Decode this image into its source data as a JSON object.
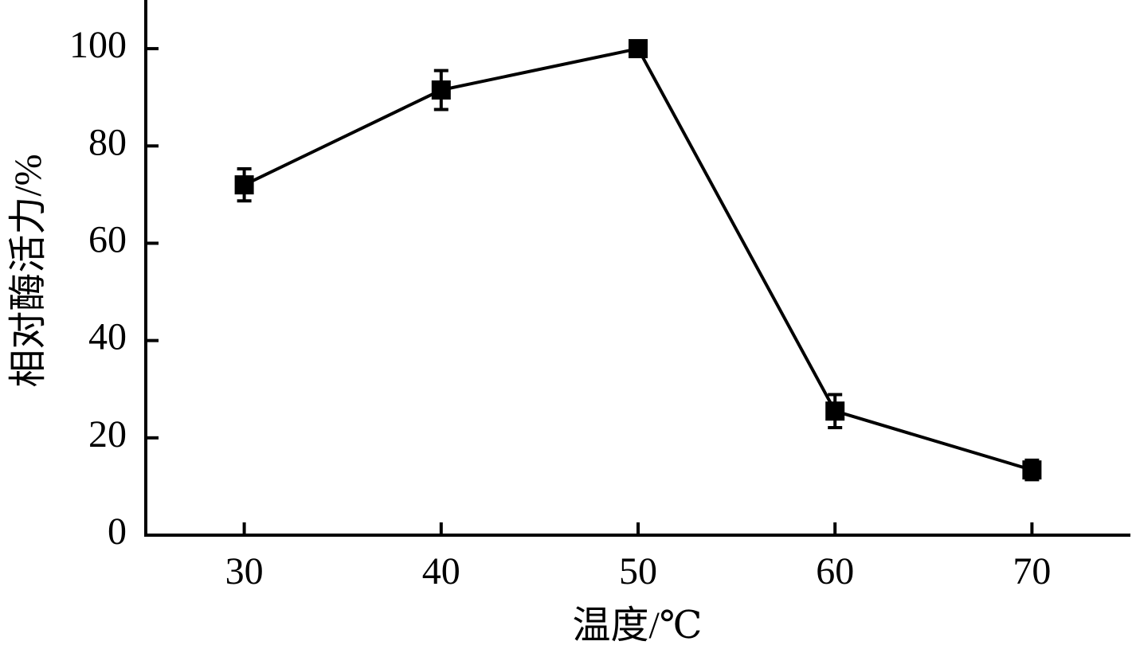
{
  "chart_data": {
    "type": "line",
    "x_label": "温度/℃",
    "y_label": "相对酶活力/%",
    "x": [
      30,
      40,
      50,
      60,
      70
    ],
    "values": [
      72,
      91.5,
      100,
      25.5,
      13.4
    ],
    "errors": [
      3.3,
      4,
      0.5,
      3.4,
      2
    ],
    "color": "#000000",
    "xlim": [
      25,
      75
    ],
    "xticks": [
      30,
      40,
      50,
      60,
      70
    ],
    "ylim": [
      0,
      110
    ],
    "yticks": [
      0,
      20,
      40,
      60,
      80,
      100
    ],
    "grid": false
  }
}
